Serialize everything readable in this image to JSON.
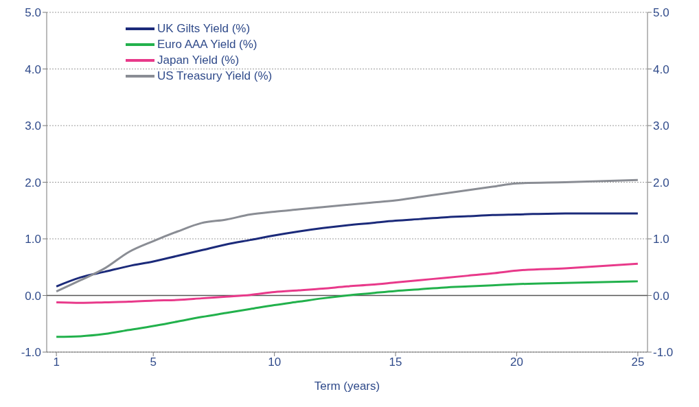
{
  "chart_data": {
    "type": "line",
    "xlabel": "Term (years)",
    "x": [
      1,
      2,
      3,
      4,
      5,
      6,
      7,
      8,
      9,
      10,
      11,
      12,
      13,
      14,
      15,
      16,
      17,
      18,
      19,
      20,
      22,
      25
    ],
    "series": [
      {
        "name": "UK Gilts Yield (%)",
        "color": "#1b2a7a",
        "values": [
          0.16,
          0.32,
          0.42,
          0.52,
          0.6,
          0.7,
          0.8,
          0.9,
          0.98,
          1.06,
          1.13,
          1.19,
          1.24,
          1.28,
          1.32,
          1.35,
          1.38,
          1.4,
          1.42,
          1.43,
          1.45,
          1.45
        ]
      },
      {
        "name": "Euro AAA Yield (%)",
        "color": "#22b14c",
        "values": [
          -0.73,
          -0.72,
          -0.68,
          -0.61,
          -0.54,
          -0.46,
          -0.38,
          -0.31,
          -0.24,
          -0.17,
          -0.11,
          -0.05,
          0.0,
          0.04,
          0.08,
          0.11,
          0.14,
          0.16,
          0.18,
          0.2,
          0.22,
          0.25
        ]
      },
      {
        "name": "Japan Yield (%)",
        "color": "#e8398a",
        "values": [
          -0.12,
          -0.13,
          -0.12,
          -0.11,
          -0.09,
          -0.08,
          -0.05,
          -0.02,
          0.01,
          0.06,
          0.09,
          0.12,
          0.16,
          0.19,
          0.23,
          0.27,
          0.31,
          0.35,
          0.39,
          0.44,
          0.48,
          0.56
        ]
      },
      {
        "name": "US Treasury Yield (%)",
        "color": "#8a8d94",
        "values": [
          0.07,
          0.27,
          0.48,
          0.77,
          0.96,
          1.13,
          1.28,
          1.34,
          1.43,
          1.48,
          1.52,
          1.56,
          1.6,
          1.64,
          1.68,
          1.74,
          1.8,
          1.86,
          1.92,
          1.98,
          2.0,
          2.04
        ]
      }
    ],
    "xlim": [
      0.6,
      25.4
    ],
    "xticks": [
      1,
      5,
      10,
      15,
      20,
      25
    ],
    "ylim": [
      -1,
      5
    ],
    "yticks": [
      {
        "value": -1,
        "label": "-1.0"
      },
      {
        "value": 0,
        "label": "0.0"
      },
      {
        "value": 1,
        "label": "1.0"
      },
      {
        "value": 2,
        "label": "2.0"
      },
      {
        "value": 3,
        "label": "3.0"
      },
      {
        "value": 4,
        "label": "4.0"
      },
      {
        "value": 5,
        "label": "5.0"
      }
    ],
    "y2lim": [
      -1,
      5
    ],
    "y2ticks": [
      {
        "value": -1,
        "label": "-1.0"
      },
      {
        "value": 0,
        "label": "0.0"
      },
      {
        "value": 1,
        "label": "1.0"
      },
      {
        "value": 2,
        "label": "2.0"
      },
      {
        "value": 3,
        "label": "3.0"
      },
      {
        "value": 4,
        "label": "4.0"
      },
      {
        "value": 5,
        "label": "5.0"
      }
    ],
    "ref_lines": [
      {
        "axis": "y",
        "value": 0,
        "color": "#555555"
      }
    ],
    "grid": "y",
    "legend": "top left",
    "marker": "none",
    "line_style": "solid"
  }
}
